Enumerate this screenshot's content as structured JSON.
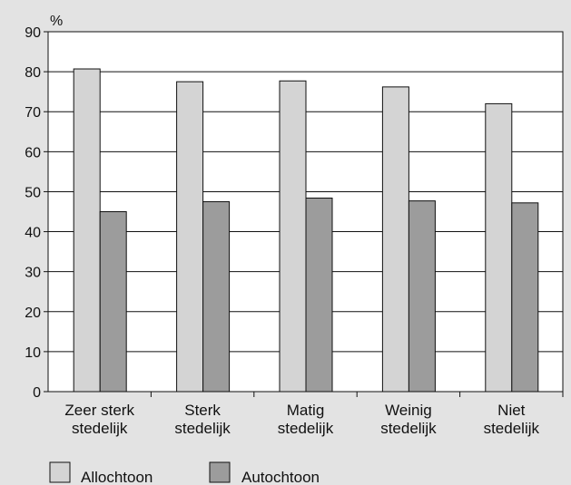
{
  "chart_data": {
    "type": "bar",
    "ylabel": "%",
    "ylim": [
      0,
      90
    ],
    "yticks": [
      "0",
      "10",
      "20",
      "30",
      "40",
      "50",
      "60",
      "70",
      "80",
      "90"
    ],
    "grid": true,
    "legend_position": "bottom-left",
    "categories": [
      [
        "Zeer sterk",
        "stedelijk"
      ],
      [
        "Sterk",
        "stedelijk"
      ],
      [
        "Matig",
        "stedelijk"
      ],
      [
        "Weinig",
        "stedelijk"
      ],
      [
        "Niet",
        "stedelijk"
      ]
    ],
    "series": [
      {
        "name": "Allochtoon",
        "color": "#d4d4d4",
        "values": [
          80.7,
          77.5,
          77.7,
          76.2,
          72.0
        ]
      },
      {
        "name": "Autochtoon",
        "color": "#9c9c9c",
        "values": [
          45.0,
          47.5,
          48.4,
          47.7,
          47.2
        ]
      }
    ]
  }
}
